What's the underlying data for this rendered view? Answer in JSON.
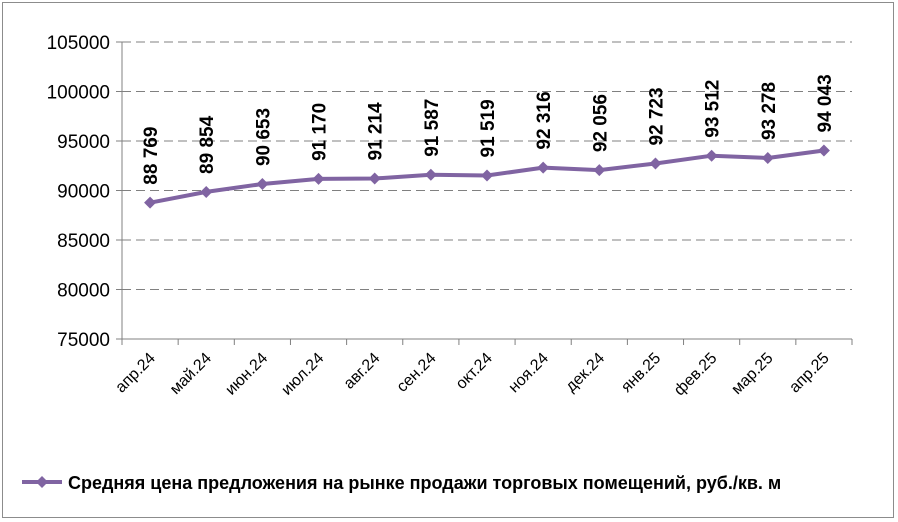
{
  "chart_data": {
    "type": "line",
    "categories": [
      "апр.24",
      "май.24",
      "июн.24",
      "июл.24",
      "авг.24",
      "сен.24",
      "окт.24",
      "ноя.24",
      "дек.24",
      "янв.25",
      "фев.25",
      "мар.25",
      "апр.25"
    ],
    "series": [
      {
        "name": "Средняя цена предложения на рынке продажи торговых помещений,  руб./кв. м",
        "values": [
          88769,
          89854,
          90653,
          91170,
          91214,
          91587,
          91519,
          92316,
          92056,
          92723,
          93512,
          93278,
          94043
        ],
        "labels": [
          "88 769",
          "89 854",
          "90 653",
          "91 170",
          "91 214",
          "91 587",
          "91 519",
          "92 316",
          "92 056",
          "92 723",
          "93 512",
          "93 278",
          "94 043"
        ],
        "color": "#8064a2",
        "marker": "diamond"
      }
    ],
    "ylim": [
      75000,
      105000
    ],
    "yticks": [
      75000,
      80000,
      85000,
      90000,
      95000,
      100000,
      105000
    ],
    "ytick_labels": [
      "75000",
      "80000",
      "85000",
      "90000",
      "95000",
      "100000",
      "105000"
    ],
    "grid": "horizontal dashed",
    "legend": "bottom",
    "title": "",
    "xlabel": "",
    "ylabel": ""
  }
}
